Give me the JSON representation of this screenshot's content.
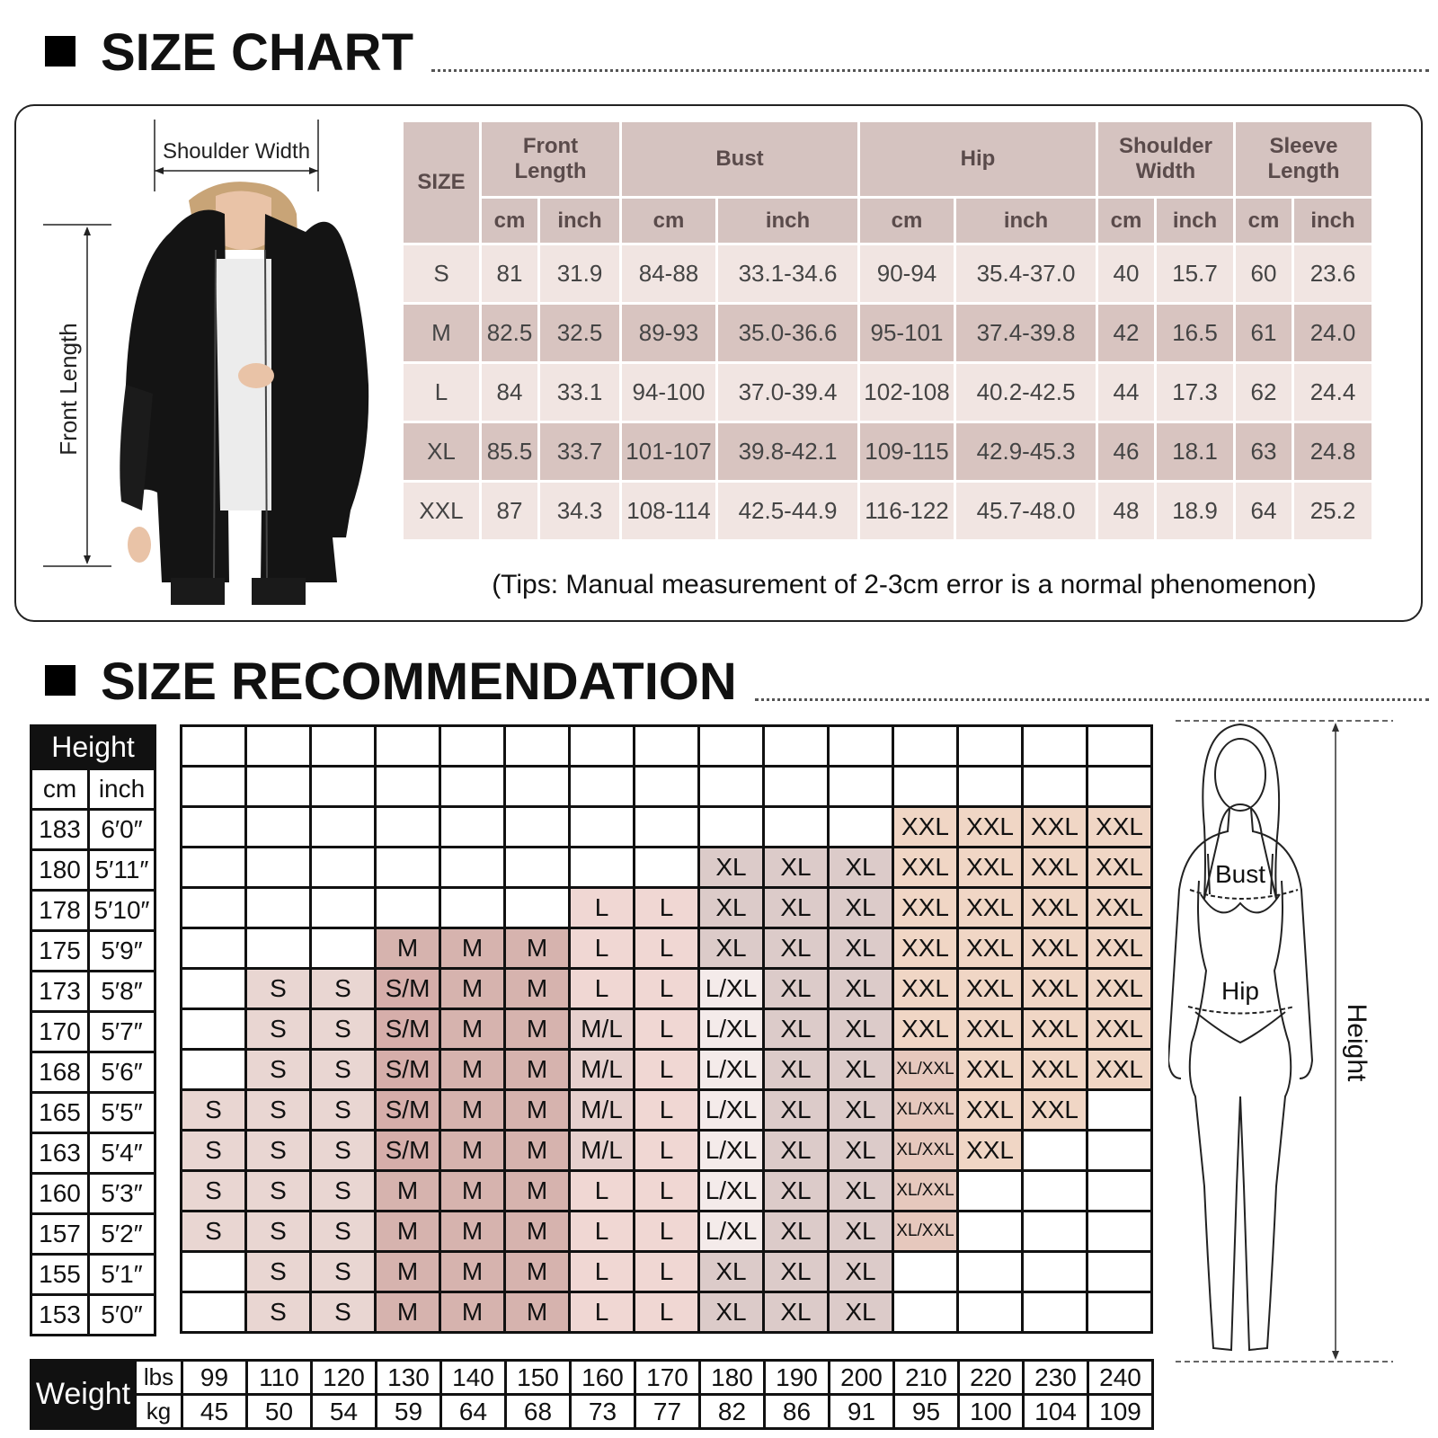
{
  "size_chart": {
    "title": "SIZE CHART",
    "model_labels": {
      "shoulder": "Shoulder Width",
      "front": "Front Length"
    },
    "headers": {
      "size": "SIZE",
      "front_length": [
        "Front",
        "Length"
      ],
      "bust": "Bust",
      "hip": "Hip",
      "shoulder_width": [
        "Shoulder",
        "Width"
      ],
      "sleeve_length": [
        "Sleeve",
        "Length"
      ],
      "units": [
        "cm",
        "inch",
        "cm",
        "inch",
        "cm",
        "inch",
        "cm",
        "inch",
        "cm",
        "inch"
      ]
    },
    "rows": [
      [
        "S",
        "81",
        "31.9",
        "84-88",
        "33.1-34.6",
        "90-94",
        "35.4-37.0",
        "40",
        "15.7",
        "60",
        "23.6"
      ],
      [
        "M",
        "82.5",
        "32.5",
        "89-93",
        "35.0-36.6",
        "95-101",
        "37.4-39.8",
        "42",
        "16.5",
        "61",
        "24.0"
      ],
      [
        "L",
        "84",
        "33.1",
        "94-100",
        "37.0-39.4",
        "102-108",
        "40.2-42.5",
        "44",
        "17.3",
        "62",
        "24.4"
      ],
      [
        "XL",
        "85.5",
        "33.7",
        "101-107",
        "39.8-42.1",
        "109-115",
        "42.9-45.3",
        "46",
        "18.1",
        "63",
        "24.8"
      ],
      [
        "XXL",
        "87",
        "34.3",
        "108-114",
        "42.5-44.9",
        "116-122",
        "45.7-48.0",
        "48",
        "18.9",
        "64",
        "25.2"
      ]
    ],
    "tips": "(Tips: Manual measurement of 2-3cm error is a normal phenomenon)"
  },
  "recommendation": {
    "title": "SIZE RECOMMENDATION",
    "height_header": "Height",
    "height_units": [
      "cm",
      "inch"
    ],
    "heights": [
      [
        "183",
        "6′0″"
      ],
      [
        "180",
        "5′11″"
      ],
      [
        "178",
        "5′10″"
      ],
      [
        "175",
        "5′9″"
      ],
      [
        "173",
        "5′8″"
      ],
      [
        "170",
        "5′7″"
      ],
      [
        "168",
        "5′6″"
      ],
      [
        "165",
        "5′5″"
      ],
      [
        "163",
        "5′4″"
      ],
      [
        "160",
        "5′3″"
      ],
      [
        "157",
        "5′2″"
      ],
      [
        "155",
        "5′1″"
      ],
      [
        "153",
        "5′0″"
      ]
    ],
    "grid": [
      [
        "",
        "",
        "",
        "",
        "",
        "",
        "",
        "",
        "",
        "",
        "",
        "",
        "",
        "",
        ""
      ],
      [
        "",
        "",
        "",
        "",
        "",
        "",
        "",
        "",
        "",
        "",
        "",
        "",
        "",
        "",
        ""
      ],
      [
        "",
        "",
        "",
        "",
        "",
        "",
        "",
        "",
        "",
        "",
        "",
        "XXL",
        "XXL",
        "XXL",
        "XXL"
      ],
      [
        "",
        "",
        "",
        "",
        "",
        "",
        "",
        "",
        "XL",
        "XL",
        "XL",
        "XXL",
        "XXL",
        "XXL",
        "XXL"
      ],
      [
        "",
        "",
        "",
        "",
        "",
        "",
        "L",
        "L",
        "XL",
        "XL",
        "XL",
        "XXL",
        "XXL",
        "XXL",
        "XXL"
      ],
      [
        "",
        "",
        "",
        "M",
        "M",
        "M",
        "L",
        "L",
        "XL",
        "XL",
        "XL",
        "XXL",
        "XXL",
        "XXL",
        "XXL"
      ],
      [
        "",
        "S",
        "S",
        "S/M",
        "M",
        "M",
        "L",
        "L",
        "L/XL",
        "XL",
        "XL",
        "XXL",
        "XXL",
        "XXL",
        "XXL"
      ],
      [
        "",
        "S",
        "S",
        "S/M",
        "M",
        "M",
        "M/L",
        "L",
        "L/XL",
        "XL",
        "XL",
        "XXL",
        "XXL",
        "XXL",
        "XXL"
      ],
      [
        "",
        "S",
        "S",
        "S/M",
        "M",
        "M",
        "M/L",
        "L",
        "L/XL",
        "XL",
        "XL",
        "XL/XXL",
        "XXL",
        "XXL",
        "XXL"
      ],
      [
        "S",
        "S",
        "S",
        "S/M",
        "M",
        "M",
        "M/L",
        "L",
        "L/XL",
        "XL",
        "XL",
        "XL/XXL",
        "XXL",
        "XXL",
        ""
      ],
      [
        "S",
        "S",
        "S",
        "S/M",
        "M",
        "M",
        "M/L",
        "L",
        "L/XL",
        "XL",
        "XL",
        "XL/XXL",
        "XXL",
        "",
        ""
      ],
      [
        "S",
        "S",
        "S",
        "M",
        "M",
        "M",
        "L",
        "L",
        "L/XL",
        "XL",
        "XL",
        "XL/XXL",
        "",
        "",
        ""
      ],
      [
        "S",
        "S",
        "S",
        "M",
        "M",
        "M",
        "L",
        "L",
        "L/XL",
        "XL",
        "XL",
        "XL/XXL",
        "",
        "",
        ""
      ],
      [
        "",
        "S",
        "S",
        "M",
        "M",
        "M",
        "L",
        "L",
        "XL",
        "XL",
        "XL",
        "",
        "",
        "",
        ""
      ],
      [
        "",
        "S",
        "S",
        "M",
        "M",
        "M",
        "L",
        "L",
        "XL",
        "XL",
        "XL",
        "",
        "",
        "",
        ""
      ]
    ],
    "weight_label": "Weight",
    "weight_units": [
      "lbs",
      "kg"
    ],
    "lbs": [
      "99",
      "110",
      "120",
      "130",
      "140",
      "150",
      "160",
      "170",
      "180",
      "190",
      "200",
      "210",
      "220",
      "230",
      "240"
    ],
    "kg": [
      "45",
      "50",
      "54",
      "59",
      "64",
      "68",
      "73",
      "77",
      "82",
      "86",
      "91",
      "95",
      "100",
      "104",
      "109"
    ],
    "body_labels": {
      "bust": "Bust",
      "hip": "Hip",
      "height": "Height"
    }
  },
  "colors": {
    "header_bg": "#d5c3c0",
    "row_light": "#f1e5e2",
    "row_dark": "#d8c4c0"
  }
}
